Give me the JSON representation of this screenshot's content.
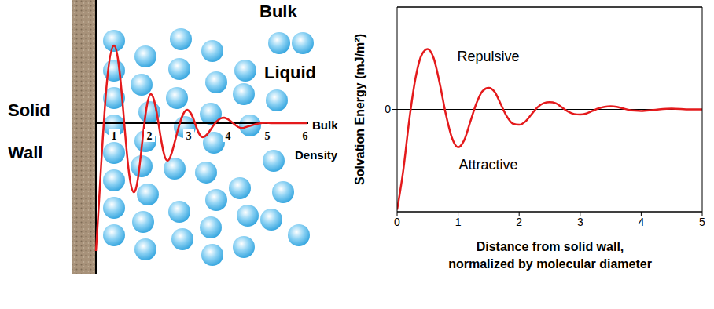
{
  "schematic": {
    "wall_label": "Solid Wall",
    "liquid_label": "Bulk Liquid",
    "axis_label": "Bulk Density",
    "layer_numbers": [
      1,
      2,
      3,
      4,
      5,
      6
    ]
  },
  "chart_data": {
    "type": "line",
    "ylabel": "Solvation Energy (mJ/m²)",
    "xlabel": "Distance from solid wall, normalized by molecular diameter",
    "annotations": [
      "Repulsive",
      "Attractive"
    ],
    "x": [
      0,
      0.1,
      0.2,
      0.3,
      0.4,
      0.5,
      0.6,
      0.7,
      0.8,
      0.9,
      1.0,
      1.1,
      1.2,
      1.3,
      1.4,
      1.5,
      1.6,
      1.7,
      1.8,
      1.9,
      2.0,
      2.1,
      2.2,
      2.3,
      2.4,
      2.5,
      2.6,
      2.7,
      2.8,
      2.9,
      3.0,
      3.1,
      3.2,
      3.3,
      3.4,
      3.5,
      3.6,
      3.7,
      3.8,
      3.9,
      4.0,
      4.2,
      4.5,
      4.8,
      5.0
    ],
    "values": [
      -0.98,
      -0.6,
      -0.1,
      0.3,
      0.53,
      0.59,
      0.5,
      0.25,
      -0.05,
      -0.28,
      -0.37,
      -0.3,
      -0.12,
      0.06,
      0.18,
      0.21,
      0.17,
      0.05,
      -0.07,
      -0.14,
      -0.15,
      -0.12,
      -0.05,
      0.02,
      0.06,
      0.07,
      0.06,
      0.02,
      -0.02,
      -0.045,
      -0.05,
      -0.04,
      -0.015,
      0.01,
      0.025,
      0.03,
      0.025,
      0.01,
      -0.005,
      -0.012,
      -0.015,
      -0.005,
      0.008,
      0,
      0
    ],
    "color": "#e41a1c",
    "xlim": [
      0,
      5
    ],
    "xticks": [
      0,
      1,
      2,
      3,
      4,
      5
    ],
    "ylim": [
      -1,
      1
    ],
    "yticks": [
      0
    ],
    "grid": true
  }
}
